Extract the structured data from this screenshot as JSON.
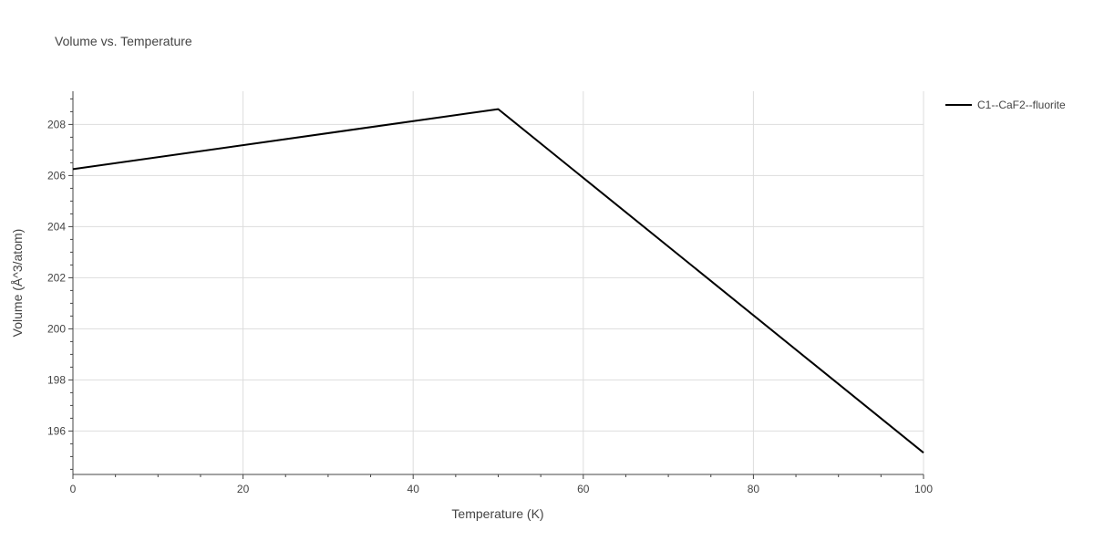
{
  "chart_data": {
    "type": "line",
    "title": "Volume vs. Temperature",
    "xlabel": "Temperature (K)",
    "ylabel": "Volume (Å^3/atom)",
    "xlim": [
      0,
      100
    ],
    "ylim": [
      194.3,
      209.3
    ],
    "x_ticks": [
      0,
      20,
      40,
      60,
      80,
      100
    ],
    "x_tick_labels": [
      "0",
      "20",
      "40",
      "60",
      "80",
      "100"
    ],
    "x_minor_step": 5,
    "y_ticks": [
      196,
      198,
      200,
      202,
      204,
      206,
      208
    ],
    "y_tick_labels": [
      "196",
      "198",
      "200",
      "202",
      "204",
      "206",
      "208"
    ],
    "y_minor_step": 0.5,
    "grid": true,
    "legend_position": "top-right",
    "series": [
      {
        "name": "C1--CaF2--fluorite",
        "color": "#000000",
        "x": [
          0,
          50,
          100
        ],
        "y": [
          206.25,
          208.6,
          195.15
        ]
      }
    ]
  },
  "colors": {
    "grid": "#dddddd",
    "axis": "#444444",
    "text": "#444444"
  }
}
